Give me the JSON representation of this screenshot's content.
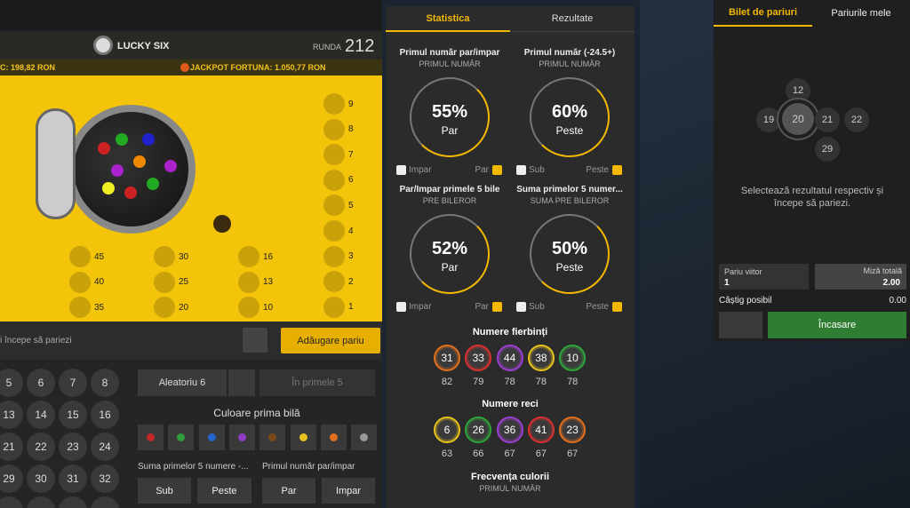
{
  "game": {
    "logo": "LUCKY SIX",
    "round_label": "RUNDA",
    "round": "212",
    "jackpot_left": "C: 198,82 RON",
    "jackpot_fortuna": "JACKPOT FORTUNA: 1.050,77 RON",
    "board_right": [
      "9",
      "8",
      "7",
      "6",
      "5",
      "4",
      "3",
      "2",
      "1"
    ],
    "board_grid": [
      [
        "45",
        "30",
        "16"
      ],
      [
        "40",
        "25",
        "13"
      ],
      [
        "35",
        "20",
        "10"
      ]
    ]
  },
  "bet_bar": {
    "hint": "i începe să pariezi",
    "add_button": "Adăugare pariu"
  },
  "numbers": [
    [
      "5",
      "6",
      "7",
      "8"
    ],
    [
      "13",
      "14",
      "15",
      "16"
    ],
    [
      "21",
      "22",
      "23",
      "24"
    ],
    [
      "29",
      "30",
      "31",
      "32"
    ]
  ],
  "controls": {
    "random": "Aleatoriu 6",
    "first5": "În primele 5",
    "color_title": "Culoare prima bilă",
    "sum_label": "Suma primelor 5 numere -...",
    "parity_label": "Primul număr par/impar",
    "buttons": [
      "Sub",
      "Peste",
      "Par",
      "Impar"
    ]
  },
  "stats": {
    "tabs": [
      "Statistica",
      "Rezultate"
    ],
    "cards": [
      {
        "title": "Primul număr par/impar",
        "subtitle": "PRIMUL NUMĂR",
        "percent": "55%",
        "label": "Par",
        "left": "Impar",
        "right": "Par"
      },
      {
        "title": "Primul număr (-24.5+)",
        "subtitle": "PRIMUL NUMĂR",
        "percent": "60%",
        "label": "Peste",
        "left": "Sub",
        "right": "Peste"
      },
      {
        "title": "Par/Impar primele 5 bile",
        "subtitle": "PRE BILEROR",
        "percent": "52%",
        "label": "Par",
        "left": "Impar",
        "right": "Par"
      },
      {
        "title": "Suma primelor 5 numer...",
        "subtitle": "SUMA PRE BILEROR",
        "percent": "50%",
        "label": "Peste",
        "left": "Sub",
        "right": "Peste"
      }
    ],
    "hot_title": "Numere fierbinți",
    "hot": [
      {
        "number": "31",
        "count": "82",
        "color": "#e0701c"
      },
      {
        "number": "33",
        "count": "79",
        "color": "#d93030"
      },
      {
        "number": "44",
        "count": "78",
        "color": "#9b3fd1"
      },
      {
        "number": "38",
        "count": "78",
        "color": "#e8c21c"
      },
      {
        "number": "10",
        "count": "78",
        "color": "#2ea53a"
      }
    ],
    "cold_title": "Numere reci",
    "cold": [
      {
        "number": "6",
        "count": "63",
        "color": "#e8c21c"
      },
      {
        "number": "26",
        "count": "66",
        "color": "#2ea53a"
      },
      {
        "number": "36",
        "count": "67",
        "color": "#9b3fd1"
      },
      {
        "number": "41",
        "count": "67",
        "color": "#d93030"
      },
      {
        "number": "23",
        "count": "67",
        "color": "#e0701c"
      }
    ],
    "freq_title": "Frecvența culorii",
    "freq_subtitle": "PRIMUL NUMĂR"
  },
  "ticket": {
    "tabs": [
      "Bilet de pariuri",
      "Pariurile mele"
    ],
    "wheel": [
      "12",
      "19",
      "20",
      "21",
      "22",
      "29"
    ],
    "message": "Selectează rezultatul respectiv și începe să pariezi.",
    "future_label": "Pariu viitor",
    "future_value": "1",
    "stake_label": "Miză totală",
    "stake_value": "2.00",
    "win_label": "Câștig posibil",
    "win_value": "0.00",
    "cashout": "Încasare"
  }
}
